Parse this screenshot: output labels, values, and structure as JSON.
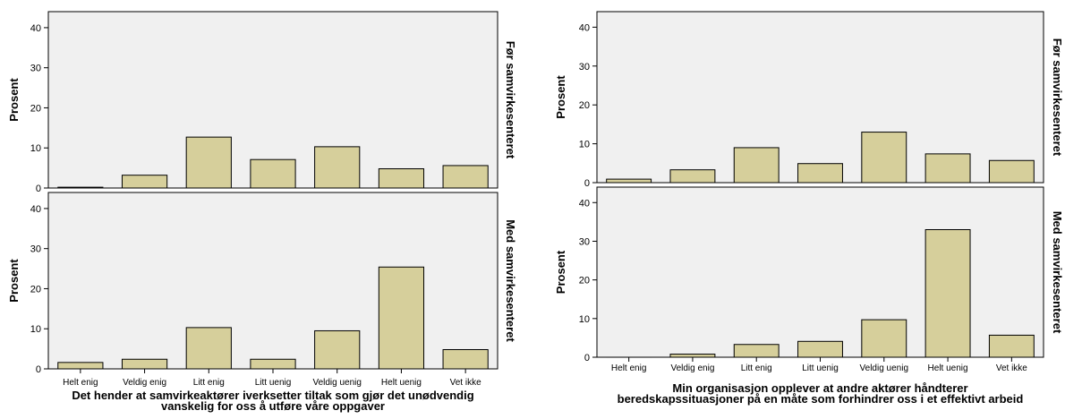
{
  "chart_data": [
    {
      "type": "bar",
      "title": "",
      "ylabel": "Prosent",
      "ylim": [
        0,
        44
      ],
      "yticks": [
        0,
        10,
        20,
        30,
        40
      ],
      "categories": [
        "Helt enig",
        "Veldig enig",
        "Litt enig",
        "Litt uenig",
        "Veldig uenig",
        "Helt uenig",
        "Vet ikke"
      ],
      "xlabel_lines": [
        "Det hender at samvirkeaktører iverksetter tiltak som gjør det unødvendig",
        "vanskelig for oss å utføre våre oppgaver"
      ],
      "bar_color": "#d6cf9b",
      "panels": [
        {
          "name": "Før samvirkesenteret",
          "values": [
            0.2,
            3.2,
            12.7,
            7.1,
            10.3,
            4.8,
            5.6
          ]
        },
        {
          "name": "Med samvirkesenteret",
          "values": [
            1.6,
            2.4,
            10.3,
            2.4,
            9.5,
            25.4,
            4.8
          ]
        }
      ]
    },
    {
      "type": "bar",
      "title": "",
      "ylabel": "Prosent",
      "ylim": [
        0,
        44
      ],
      "yticks": [
        0,
        10,
        20,
        30,
        40
      ],
      "categories": [
        "Helt enig",
        "Veldig enig",
        "Litt enig",
        "Litt uenig",
        "Veldig uenig",
        "Helt uenig",
        "Vet ikke"
      ],
      "xlabel_lines": [
        "Min organisasjon opplever at andre aktører håndterer",
        "beredskapssituasjoner på en måte som forhindrer oss i et effektivt arbeid"
      ],
      "bar_color": "#d6cf9b",
      "panels": [
        {
          "name": "Før samvirkesenteret",
          "values": [
            0.9,
            3.3,
            9.0,
            4.9,
            13.0,
            7.4,
            5.7
          ]
        },
        {
          "name": "Med samvirkesenteret",
          "values": [
            0.0,
            0.8,
            3.3,
            4.1,
            9.7,
            33.0,
            5.7
          ]
        }
      ]
    }
  ]
}
